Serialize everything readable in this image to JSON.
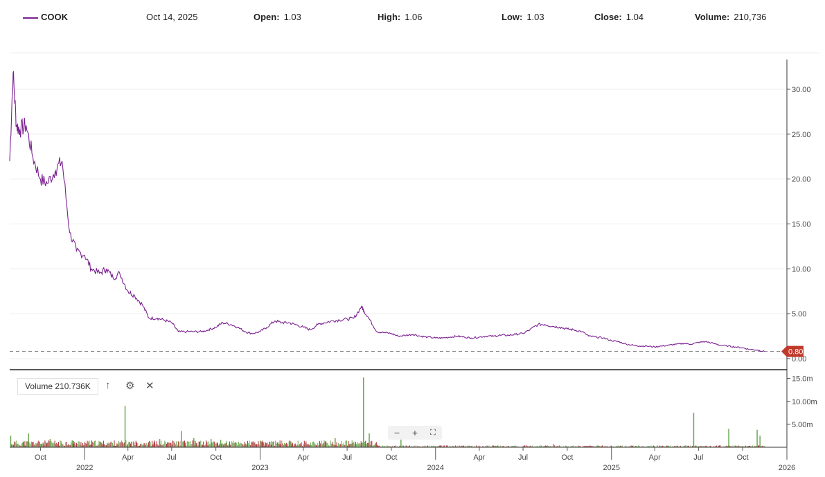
{
  "header": {
    "symbol": "COOK",
    "date": "Oct 14, 2025",
    "open_label": "Open:",
    "open": "1.03",
    "high_label": "High:",
    "high": "1.06",
    "low_label": "Low:",
    "low": "1.03",
    "close_label": "Close:",
    "close": "1.04",
    "volume_label": "Volume:",
    "volume": "210,736"
  },
  "volume_panel": {
    "label": "Volume 210.736K",
    "icons": [
      "arrow-up-icon",
      "gear-icon",
      "close-icon"
    ]
  },
  "zoom_controls": [
    "minus-icon",
    "plus-icon",
    "fullscreen-icon"
  ],
  "chart_data": [
    {
      "type": "line",
      "series": [
        {
          "name": "COOK",
          "color": "#7a1f8f",
          "x": [
            "2021-07-29",
            "2021-08-05",
            "2021-08-12",
            "2021-08-19",
            "2021-09-01",
            "2021-09-15",
            "2021-10-01",
            "2021-10-15",
            "2021-11-01",
            "2021-11-15",
            "2021-12-01",
            "2021-12-15",
            "2022-01-01",
            "2022-01-15",
            "2022-02-01",
            "2022-02-15",
            "2022-03-01",
            "2022-03-15",
            "2022-04-01",
            "2022-04-15",
            "2022-05-01",
            "2022-05-15",
            "2022-06-01",
            "2022-06-15",
            "2022-07-01",
            "2022-07-15",
            "2022-08-01",
            "2022-08-15",
            "2022-09-01",
            "2022-09-15",
            "2022-10-01",
            "2022-10-15",
            "2022-11-01",
            "2022-11-15",
            "2022-12-01",
            "2022-12-15",
            "2023-01-01",
            "2023-01-15",
            "2023-02-01",
            "2023-02-15",
            "2023-03-01",
            "2023-03-15",
            "2023-04-01",
            "2023-04-15",
            "2023-05-01",
            "2023-05-15",
            "2023-06-01",
            "2023-06-15",
            "2023-07-01",
            "2023-07-15",
            "2023-07-31",
            "2023-08-05",
            "2023-08-15",
            "2023-09-01",
            "2023-09-15",
            "2023-10-01",
            "2023-10-15",
            "2023-11-01",
            "2023-11-15",
            "2023-12-01",
            "2023-12-15",
            "2024-01-01",
            "2024-01-15",
            "2024-02-01",
            "2024-02-15",
            "2024-03-01",
            "2024-03-15",
            "2024-04-01",
            "2024-04-15",
            "2024-05-01",
            "2024-05-15",
            "2024-06-01",
            "2024-06-15",
            "2024-07-01",
            "2024-07-15",
            "2024-08-01",
            "2024-08-15",
            "2024-09-01",
            "2024-09-15",
            "2024-10-01",
            "2024-10-15",
            "2024-11-01",
            "2024-11-15",
            "2024-12-01",
            "2024-12-15",
            "2025-01-01",
            "2025-01-15",
            "2025-02-01",
            "2025-02-15",
            "2025-03-01",
            "2025-03-15",
            "2025-04-01",
            "2025-04-15",
            "2025-05-01",
            "2025-05-15",
            "2025-06-01",
            "2025-06-15",
            "2025-07-01",
            "2025-07-15",
            "2025-08-01",
            "2025-08-15",
            "2025-09-01",
            "2025-09-15",
            "2025-10-01",
            "2025-10-14",
            "2025-11-01",
            "2025-11-15"
          ],
          "values": [
            22.0,
            31.8,
            26.0,
            25.5,
            26.0,
            22.5,
            20.0,
            19.5,
            21.0,
            22.0,
            14.0,
            12.0,
            11.5,
            10.0,
            9.5,
            10.0,
            9.0,
            9.5,
            7.5,
            7.0,
            6.0,
            4.5,
            4.5,
            4.3,
            4.0,
            3.0,
            3.0,
            3.0,
            3.0,
            3.2,
            3.5,
            4.0,
            3.8,
            3.5,
            3.0,
            2.8,
            3.0,
            3.5,
            4.2,
            4.0,
            4.0,
            3.8,
            3.5,
            3.2,
            3.8,
            4.0,
            4.2,
            4.3,
            4.4,
            4.5,
            5.8,
            5.3,
            4.5,
            3.0,
            2.9,
            2.8,
            2.5,
            2.6,
            2.7,
            2.5,
            2.4,
            2.3,
            2.3,
            2.4,
            2.5,
            2.4,
            2.3,
            2.4,
            2.5,
            2.5,
            2.6,
            2.6,
            2.7,
            2.8,
            3.2,
            3.8,
            3.8,
            3.6,
            3.5,
            3.3,
            3.2,
            3.0,
            2.5,
            2.4,
            2.3,
            2.0,
            1.9,
            1.6,
            1.5,
            1.4,
            1.4,
            1.3,
            1.4,
            1.5,
            1.6,
            1.7,
            1.6,
            1.8,
            1.9,
            1.7,
            1.5,
            1.4,
            1.3,
            1.2,
            1.04,
            0.95,
            0.8
          ]
        }
      ],
      "ylim": [
        0,
        33
      ],
      "y_ticks": [
        "0.00",
        "5.00",
        "10.00",
        "15.00",
        "20.00",
        "25.00",
        "30.00"
      ],
      "last_price_label": "0.80",
      "last_price_color": "#c0392b",
      "grid": true
    },
    {
      "type": "bar",
      "series": [
        {
          "name": "Volume",
          "up_color": "#6aa84f",
          "down_color": "#a52a2a",
          "spikes": [
            {
              "x": "2021-07-30",
              "value": 2.5
            },
            {
              "x": "2021-09-05",
              "value": 3.0
            },
            {
              "x": "2021-10-20",
              "value": 1.8
            },
            {
              "x": "2021-12-05",
              "value": 1.5
            },
            {
              "x": "2022-03-25",
              "value": 9.0
            },
            {
              "x": "2022-06-05",
              "value": 1.8
            },
            {
              "x": "2022-07-20",
              "value": 3.5
            },
            {
              "x": "2022-08-15",
              "value": 2.0
            },
            {
              "x": "2022-09-20",
              "value": 1.8
            },
            {
              "x": "2022-10-10",
              "value": 1.6
            },
            {
              "x": "2023-03-05",
              "value": 1.2
            },
            {
              "x": "2023-06-05",
              "value": 2.0
            },
            {
              "x": "2023-08-03",
              "value": 15.2
            },
            {
              "x": "2023-08-15",
              "value": 3.0
            },
            {
              "x": "2023-10-20",
              "value": 2.0
            },
            {
              "x": "2024-09-01",
              "value": 0.7
            },
            {
              "x": "2025-06-20",
              "value": 7.5
            },
            {
              "x": "2025-09-01",
              "value": 4.0
            },
            {
              "x": "2025-10-30",
              "value": 3.8
            },
            {
              "x": "2025-11-05",
              "value": 2.5
            }
          ]
        }
      ],
      "ylim": [
        0,
        16
      ],
      "y_ticks": [
        "5.00m",
        "10.00m",
        "15.0m"
      ]
    }
  ],
  "x_axis": {
    "start": "2021-07-29",
    "end": "2026-01-01",
    "ticks": [
      {
        "date": "2021-10-01",
        "label": "Oct",
        "year": ""
      },
      {
        "date": "2022-01-01",
        "label": "",
        "year": "2022"
      },
      {
        "date": "2022-04-01",
        "label": "Apr",
        "year": ""
      },
      {
        "date": "2022-07-01",
        "label": "Jul",
        "year": ""
      },
      {
        "date": "2022-10-01",
        "label": "Oct",
        "year": ""
      },
      {
        "date": "2023-01-01",
        "label": "",
        "year": "2023"
      },
      {
        "date": "2023-04-01",
        "label": "Apr",
        "year": ""
      },
      {
        "date": "2023-07-01",
        "label": "Jul",
        "year": ""
      },
      {
        "date": "2023-10-01",
        "label": "Oct",
        "year": ""
      },
      {
        "date": "2024-01-01",
        "label": "",
        "year": "2024"
      },
      {
        "date": "2024-04-01",
        "label": "Apr",
        "year": ""
      },
      {
        "date": "2024-07-01",
        "label": "Jul",
        "year": ""
      },
      {
        "date": "2024-10-01",
        "label": "Oct",
        "year": ""
      },
      {
        "date": "2025-01-01",
        "label": "",
        "year": "2025"
      },
      {
        "date": "2025-04-01",
        "label": "Apr",
        "year": ""
      },
      {
        "date": "2025-07-01",
        "label": "Jul",
        "year": ""
      },
      {
        "date": "2025-10-01",
        "label": "Oct",
        "year": ""
      },
      {
        "date": "2026-01-01",
        "label": "",
        "year": "2026"
      }
    ]
  }
}
